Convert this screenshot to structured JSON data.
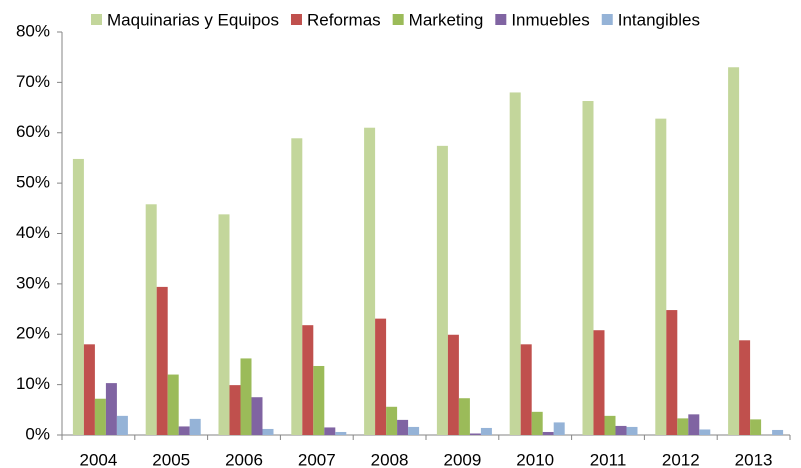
{
  "chart_data": {
    "type": "bar",
    "categories": [
      "2004",
      "2005",
      "2006",
      "2007",
      "2008",
      "2009",
      "2010",
      "2011",
      "2012",
      "2013"
    ],
    "series": [
      {
        "name": "Maquinarias y Equipos",
        "color": "#c3d69b",
        "values": [
          54.8,
          45.8,
          43.8,
          58.9,
          61,
          57.4,
          68,
          66.3,
          62.8,
          73
        ]
      },
      {
        "name": "Reformas",
        "color": "#c0504d",
        "values": [
          18,
          29.4,
          9.9,
          21.8,
          23.1,
          19.9,
          18,
          20.8,
          24.8,
          18.8
        ]
      },
      {
        "name": "Marketing",
        "color": "#9bbb59",
        "values": [
          7.2,
          12,
          15.2,
          13.7,
          5.6,
          7.3,
          4.6,
          3.8,
          3.3,
          3.1
        ]
      },
      {
        "name": "Inmuebles",
        "color": "#8064a2",
        "values": [
          10.3,
          1.7,
          7.5,
          1.5,
          3,
          0.3,
          0.6,
          1.8,
          4.1,
          0
        ]
      },
      {
        "name": "Intangibles",
        "color": "#95b3d7",
        "values": [
          3.8,
          3.2,
          1.2,
          0.6,
          1.6,
          1.4,
          2.5,
          1.6,
          1.1,
          1
        ]
      }
    ],
    "ylim": [
      0,
      80
    ],
    "yticks": [
      {
        "value": 0,
        "label": "0%"
      },
      {
        "value": 10,
        "label": "10%"
      },
      {
        "value": 20,
        "label": "20%"
      },
      {
        "value": 30,
        "label": "30%"
      },
      {
        "value": 40,
        "label": "40%"
      },
      {
        "value": 50,
        "label": "50%"
      },
      {
        "value": 60,
        "label": "60%"
      },
      {
        "value": 70,
        "label": "70%"
      },
      {
        "value": 80,
        "label": "80%"
      }
    ],
    "grid": false,
    "legend": "top"
  }
}
